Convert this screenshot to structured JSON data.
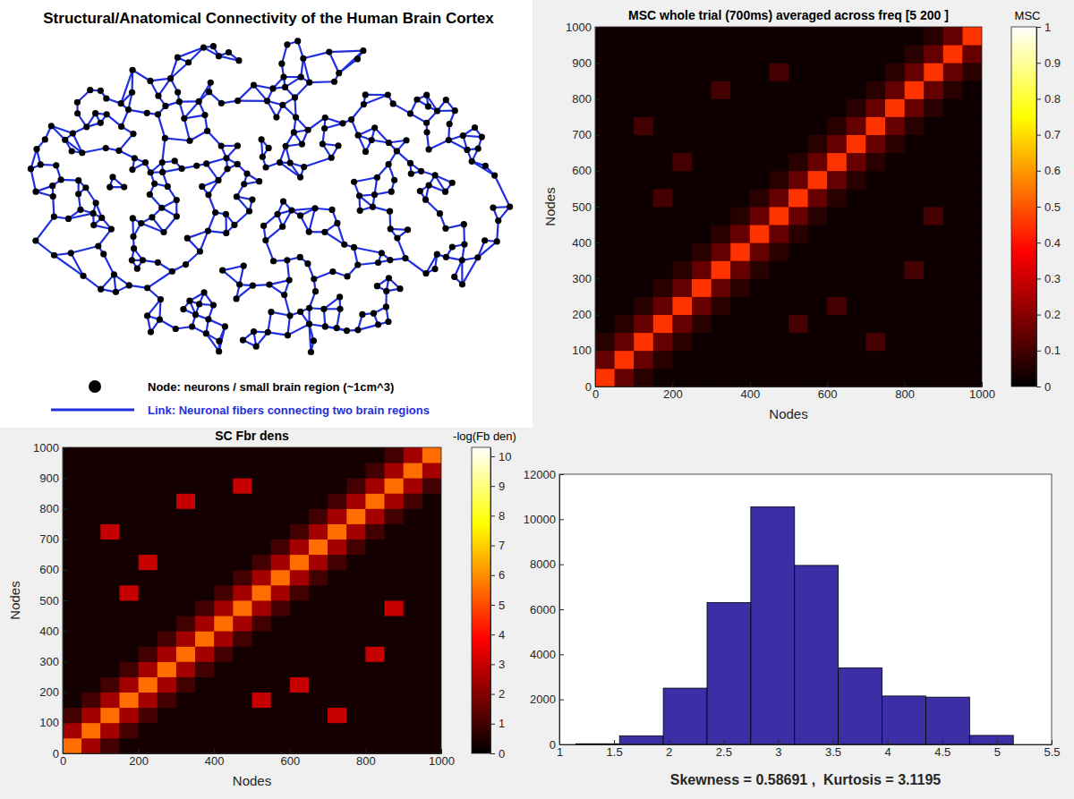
{
  "diagram": {
    "title": "Structural/Anatomical Connectivity of the Human Brain Cortex",
    "node_legend": "Node: neurons / small brain region (~1cm^3)",
    "link_legend": "Link: Neuronal fibers connecting two brain regions"
  },
  "chart_data": [
    {
      "type": "heatmap",
      "title": "MSC whole trial (700ms) averaged across freq [5 200 ]",
      "x_label": "Nodes",
      "y_label": "Nodes",
      "xlim": [
        0,
        1000
      ],
      "ylim": [
        0,
        1000
      ],
      "xticks": [
        0,
        200,
        400,
        600,
        800,
        1000
      ],
      "yticks": [
        0,
        100,
        200,
        300,
        400,
        500,
        600,
        700,
        800,
        900,
        1000
      ],
      "grid": false,
      "colorbar": {
        "label": "MSC",
        "lim": [
          0,
          1
        ],
        "ticks": [
          0,
          0.1,
          0.2,
          0.3,
          0.4,
          0.5,
          0.6,
          0.7,
          0.8,
          0.9,
          1
        ]
      },
      "values": [
        [
          0.45,
          0.15,
          0.06,
          0.02,
          0.02,
          0.02,
          0.02,
          0.02,
          0.02,
          0.02,
          0.02,
          0.02,
          0.02,
          0.02,
          0.02,
          0.02,
          0.02,
          0.02,
          0.02,
          0.02
        ],
        [
          0.15,
          0.45,
          0.15,
          0.06,
          0.02,
          0.02,
          0.02,
          0.02,
          0.02,
          0.02,
          0.02,
          0.02,
          0.02,
          0.02,
          0.02,
          0.02,
          0.02,
          0.02,
          0.02,
          0.02
        ],
        [
          0.06,
          0.15,
          0.45,
          0.15,
          0.06,
          0.02,
          0.02,
          0.02,
          0.02,
          0.02,
          0.02,
          0.02,
          0.02,
          0.02,
          0.1,
          0.02,
          0.02,
          0.02,
          0.02,
          0.02
        ],
        [
          0.02,
          0.06,
          0.15,
          0.45,
          0.15,
          0.06,
          0.02,
          0.02,
          0.02,
          0.02,
          0.1,
          0.02,
          0.02,
          0.02,
          0.02,
          0.02,
          0.02,
          0.02,
          0.02,
          0.02
        ],
        [
          0.02,
          0.02,
          0.06,
          0.15,
          0.45,
          0.15,
          0.06,
          0.02,
          0.02,
          0.02,
          0.02,
          0.02,
          0.1,
          0.02,
          0.02,
          0.02,
          0.02,
          0.02,
          0.02,
          0.02
        ],
        [
          0.02,
          0.02,
          0.02,
          0.06,
          0.15,
          0.45,
          0.15,
          0.06,
          0.02,
          0.02,
          0.02,
          0.02,
          0.02,
          0.02,
          0.02,
          0.02,
          0.02,
          0.02,
          0.02,
          0.02
        ],
        [
          0.02,
          0.02,
          0.02,
          0.02,
          0.06,
          0.15,
          0.45,
          0.15,
          0.06,
          0.02,
          0.02,
          0.02,
          0.02,
          0.02,
          0.02,
          0.02,
          0.1,
          0.02,
          0.02,
          0.02
        ],
        [
          0.02,
          0.02,
          0.02,
          0.02,
          0.02,
          0.06,
          0.15,
          0.45,
          0.15,
          0.06,
          0.02,
          0.02,
          0.02,
          0.02,
          0.02,
          0.02,
          0.02,
          0.02,
          0.02,
          0.02
        ],
        [
          0.02,
          0.02,
          0.02,
          0.02,
          0.02,
          0.02,
          0.06,
          0.15,
          0.45,
          0.15,
          0.06,
          0.02,
          0.02,
          0.02,
          0.02,
          0.02,
          0.02,
          0.02,
          0.02,
          0.02
        ],
        [
          0.02,
          0.02,
          0.02,
          0.02,
          0.02,
          0.02,
          0.02,
          0.06,
          0.15,
          0.45,
          0.15,
          0.06,
          0.02,
          0.02,
          0.02,
          0.02,
          0.02,
          0.1,
          0.02,
          0.02
        ],
        [
          0.02,
          0.02,
          0.02,
          0.1,
          0.02,
          0.02,
          0.02,
          0.02,
          0.06,
          0.15,
          0.45,
          0.15,
          0.06,
          0.02,
          0.02,
          0.02,
          0.02,
          0.02,
          0.02,
          0.02
        ],
        [
          0.02,
          0.02,
          0.02,
          0.02,
          0.02,
          0.02,
          0.02,
          0.02,
          0.02,
          0.06,
          0.15,
          0.45,
          0.15,
          0.06,
          0.02,
          0.02,
          0.02,
          0.02,
          0.02,
          0.02
        ],
        [
          0.02,
          0.02,
          0.02,
          0.02,
          0.1,
          0.02,
          0.02,
          0.02,
          0.02,
          0.02,
          0.06,
          0.15,
          0.45,
          0.15,
          0.06,
          0.02,
          0.02,
          0.02,
          0.02,
          0.02
        ],
        [
          0.02,
          0.02,
          0.02,
          0.02,
          0.02,
          0.02,
          0.02,
          0.02,
          0.02,
          0.02,
          0.02,
          0.06,
          0.15,
          0.45,
          0.15,
          0.06,
          0.02,
          0.02,
          0.02,
          0.02
        ],
        [
          0.02,
          0.02,
          0.1,
          0.02,
          0.02,
          0.02,
          0.02,
          0.02,
          0.02,
          0.02,
          0.02,
          0.02,
          0.06,
          0.15,
          0.45,
          0.15,
          0.06,
          0.02,
          0.02,
          0.02
        ],
        [
          0.02,
          0.02,
          0.02,
          0.02,
          0.02,
          0.02,
          0.02,
          0.02,
          0.02,
          0.02,
          0.02,
          0.02,
          0.02,
          0.06,
          0.15,
          0.45,
          0.15,
          0.06,
          0.02,
          0.02
        ],
        [
          0.02,
          0.02,
          0.02,
          0.02,
          0.02,
          0.02,
          0.1,
          0.02,
          0.02,
          0.02,
          0.02,
          0.02,
          0.02,
          0.02,
          0.06,
          0.15,
          0.45,
          0.15,
          0.06,
          0.02
        ],
        [
          0.02,
          0.02,
          0.02,
          0.02,
          0.02,
          0.02,
          0.02,
          0.02,
          0.02,
          0.1,
          0.02,
          0.02,
          0.02,
          0.02,
          0.02,
          0.06,
          0.15,
          0.45,
          0.15,
          0.06
        ],
        [
          0.02,
          0.02,
          0.02,
          0.02,
          0.02,
          0.02,
          0.02,
          0.02,
          0.02,
          0.02,
          0.02,
          0.02,
          0.02,
          0.02,
          0.02,
          0.02,
          0.06,
          0.15,
          0.45,
          0.15
        ],
        [
          0.02,
          0.02,
          0.02,
          0.02,
          0.02,
          0.02,
          0.02,
          0.02,
          0.02,
          0.02,
          0.02,
          0.02,
          0.02,
          0.02,
          0.02,
          0.02,
          0.02,
          0.06,
          0.15,
          0.45
        ]
      ]
    },
    {
      "type": "heatmap",
      "title": "SC Fbr dens",
      "x_label": "Nodes",
      "y_label": "Nodes",
      "xlim": [
        0,
        1000
      ],
      "ylim": [
        0,
        1000
      ],
      "xticks": [
        0,
        200,
        400,
        600,
        800,
        1000
      ],
      "yticks": [
        0,
        100,
        200,
        300,
        400,
        500,
        600,
        700,
        800,
        900,
        1000
      ],
      "grid": false,
      "colorbar": {
        "label": "-log(Fb den)",
        "lim": [
          0,
          10.3
        ],
        "ticks": [
          0,
          1,
          2,
          3,
          4,
          5,
          6,
          7,
          8,
          9,
          10
        ]
      },
      "values": [
        [
          5.5,
          2.5,
          1,
          0.3,
          0.3,
          0.3,
          0.3,
          0.3,
          0.3,
          0.3,
          0.3,
          0.3,
          0.3,
          0.3,
          0.3,
          0.3,
          0.3,
          0.3,
          0.3,
          0.3
        ],
        [
          2.5,
          5.5,
          2.5,
          1,
          0.3,
          0.3,
          0.3,
          0.3,
          0.3,
          0.3,
          0.3,
          0.3,
          0.3,
          0.3,
          0.3,
          0.3,
          0.3,
          0.3,
          0.3,
          0.3
        ],
        [
          1,
          2.5,
          5.5,
          2.5,
          1,
          0.3,
          0.3,
          0.3,
          0.3,
          0.3,
          0.3,
          0.3,
          0.3,
          0.3,
          3,
          0.3,
          0.3,
          0.3,
          0.3,
          0.3
        ],
        [
          0.3,
          1,
          2.5,
          5.5,
          2.5,
          1,
          0.3,
          0.3,
          0.3,
          0.3,
          3,
          0.3,
          0.3,
          0.3,
          0.3,
          0.3,
          0.3,
          0.3,
          0.3,
          0.3
        ],
        [
          0.3,
          0.3,
          1,
          2.5,
          5.5,
          2.5,
          1,
          0.3,
          0.3,
          0.3,
          0.3,
          0.3,
          3,
          0.3,
          0.3,
          0.3,
          0.3,
          0.3,
          0.3,
          0.3
        ],
        [
          0.3,
          0.3,
          0.3,
          1,
          2.5,
          5.5,
          2.5,
          1,
          0.3,
          0.3,
          0.3,
          0.3,
          0.3,
          0.3,
          0.3,
          0.3,
          0.3,
          0.3,
          0.3,
          0.3
        ],
        [
          0.3,
          0.3,
          0.3,
          0.3,
          1,
          2.5,
          5.5,
          2.5,
          1,
          0.3,
          0.3,
          0.3,
          0.3,
          0.3,
          0.3,
          0.3,
          3,
          0.3,
          0.3,
          0.3
        ],
        [
          0.3,
          0.3,
          0.3,
          0.3,
          0.3,
          1,
          2.5,
          5.5,
          2.5,
          1,
          0.3,
          0.3,
          0.3,
          0.3,
          0.3,
          0.3,
          0.3,
          0.3,
          0.3,
          0.3
        ],
        [
          0.3,
          0.3,
          0.3,
          0.3,
          0.3,
          0.3,
          1,
          2.5,
          5.5,
          2.5,
          1,
          0.3,
          0.3,
          0.3,
          0.3,
          0.3,
          0.3,
          0.3,
          0.3,
          0.3
        ],
        [
          0.3,
          0.3,
          0.3,
          0.3,
          0.3,
          0.3,
          0.3,
          1,
          2.5,
          5.5,
          2.5,
          1,
          0.3,
          0.3,
          0.3,
          0.3,
          0.3,
          3,
          0.3,
          0.3
        ],
        [
          0.3,
          0.3,
          0.3,
          3,
          0.3,
          0.3,
          0.3,
          0.3,
          1,
          2.5,
          5.5,
          2.5,
          1,
          0.3,
          0.3,
          0.3,
          0.3,
          0.3,
          0.3,
          0.3
        ],
        [
          0.3,
          0.3,
          0.3,
          0.3,
          0.3,
          0.3,
          0.3,
          0.3,
          0.3,
          1,
          2.5,
          5.5,
          2.5,
          1,
          0.3,
          0.3,
          0.3,
          0.3,
          0.3,
          0.3
        ],
        [
          0.3,
          0.3,
          0.3,
          0.3,
          3,
          0.3,
          0.3,
          0.3,
          0.3,
          0.3,
          1,
          2.5,
          5.5,
          2.5,
          1,
          0.3,
          0.3,
          0.3,
          0.3,
          0.3
        ],
        [
          0.3,
          0.3,
          0.3,
          0.3,
          0.3,
          0.3,
          0.3,
          0.3,
          0.3,
          0.3,
          0.3,
          1,
          2.5,
          5.5,
          2.5,
          1,
          0.3,
          0.3,
          0.3,
          0.3
        ],
        [
          0.3,
          0.3,
          3,
          0.3,
          0.3,
          0.3,
          0.3,
          0.3,
          0.3,
          0.3,
          0.3,
          0.3,
          1,
          2.5,
          5.5,
          2.5,
          1,
          0.3,
          0.3,
          0.3
        ],
        [
          0.3,
          0.3,
          0.3,
          0.3,
          0.3,
          0.3,
          0.3,
          0.3,
          0.3,
          0.3,
          0.3,
          0.3,
          0.3,
          1,
          2.5,
          5.5,
          2.5,
          1,
          0.3,
          0.3
        ],
        [
          0.3,
          0.3,
          0.3,
          0.3,
          0.3,
          0.3,
          3,
          0.3,
          0.3,
          0.3,
          0.3,
          0.3,
          0.3,
          0.3,
          1,
          2.5,
          5.5,
          2.5,
          1,
          0.3
        ],
        [
          0.3,
          0.3,
          0.3,
          0.3,
          0.3,
          0.3,
          0.3,
          0.3,
          0.3,
          3,
          0.3,
          0.3,
          0.3,
          0.3,
          0.3,
          1,
          2.5,
          5.5,
          2.5,
          1
        ],
        [
          0.3,
          0.3,
          0.3,
          0.3,
          0.3,
          0.3,
          0.3,
          0.3,
          0.3,
          0.3,
          0.3,
          0.3,
          0.3,
          0.3,
          0.3,
          0.3,
          1,
          2.5,
          5.5,
          2.5
        ],
        [
          0.3,
          0.3,
          0.3,
          0.3,
          0.3,
          0.3,
          0.3,
          0.3,
          0.3,
          0.3,
          0.3,
          0.3,
          0.3,
          0.3,
          0.3,
          0.3,
          0.3,
          1,
          2.5,
          5.5
        ]
      ]
    },
    {
      "type": "histogram",
      "x_label": "Skewness = 0.58691 ,  Kurtosis = 3.1195",
      "bins": [
        1.15,
        1.55,
        1.95,
        2.35,
        2.75,
        3.15,
        3.55,
        3.95,
        4.35,
        4.75,
        5.15
      ],
      "values": [
        30,
        380,
        2500,
        6300,
        10550,
        7950,
        3400,
        2150,
        2100,
        400
      ],
      "color": "#3c2fa6",
      "xlim": [
        1,
        5.5
      ],
      "ylim": [
        0,
        12000
      ],
      "xticks": [
        1,
        1.5,
        2,
        2.5,
        3,
        3.5,
        4,
        4.5,
        5,
        5.5
      ],
      "yticks": [
        0,
        2000,
        4000,
        6000,
        8000,
        10000,
        12000
      ],
      "grid": false
    }
  ]
}
